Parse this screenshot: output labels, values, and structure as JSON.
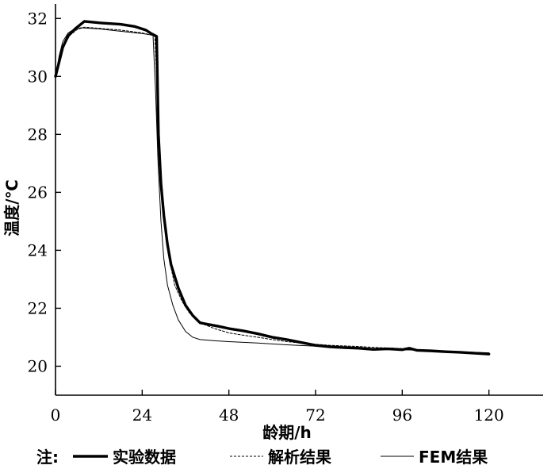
{
  "chart_data": {
    "type": "line",
    "xlabel": "龄期/h",
    "ylabel": "温度/℃",
    "xlim": [
      0,
      135
    ],
    "ylim": [
      19,
      32.5
    ],
    "x_ticks": [
      "0",
      "24",
      "48",
      "72",
      "96",
      "120"
    ],
    "x_tick_values": [
      0,
      24,
      48,
      72,
      96,
      120
    ],
    "y_ticks": [
      "20",
      "22",
      "24",
      "26",
      "28",
      "30",
      "32"
    ],
    "y_tick_values": [
      20,
      22,
      24,
      26,
      28,
      30,
      32
    ],
    "legend_prefix": "注:",
    "legend_position": "bottom",
    "series": [
      {
        "name": "实验数据",
        "style": "thick",
        "color": "#000000",
        "points": [
          [
            0,
            30
          ],
          [
            1,
            30.5
          ],
          [
            2,
            31
          ],
          [
            3.5,
            31.4
          ],
          [
            5.5,
            31.65
          ],
          [
            7,
            31.8
          ],
          [
            8,
            31.9
          ],
          [
            12,
            31.85
          ],
          [
            18,
            31.8
          ],
          [
            22,
            31.72
          ],
          [
            25,
            31.6
          ],
          [
            26.5,
            31.48
          ],
          [
            28,
            31.38
          ],
          [
            28.5,
            28
          ],
          [
            29.2,
            26.3
          ],
          [
            30,
            25.2
          ],
          [
            31,
            24.2
          ],
          [
            32,
            23.5
          ],
          [
            34,
            22.7
          ],
          [
            36,
            22.1
          ],
          [
            38,
            21.75
          ],
          [
            40,
            21.5
          ],
          [
            42,
            21.45
          ],
          [
            45,
            21.38
          ],
          [
            48,
            21.3
          ],
          [
            52,
            21.22
          ],
          [
            56,
            21.12
          ],
          [
            60,
            21.0
          ],
          [
            64,
            20.92
          ],
          [
            68,
            20.82
          ],
          [
            72,
            20.72
          ],
          [
            76,
            20.67
          ],
          [
            80,
            20.64
          ],
          [
            84,
            20.62
          ],
          [
            88,
            20.58
          ],
          [
            92,
            20.6
          ],
          [
            96,
            20.57
          ],
          [
            98,
            20.62
          ],
          [
            100,
            20.55
          ],
          [
            104,
            20.53
          ],
          [
            108,
            20.5
          ],
          [
            112,
            20.48
          ],
          [
            116,
            20.45
          ],
          [
            120,
            20.42
          ]
        ]
      },
      {
        "name": "解析结果",
        "style": "dashed",
        "color": "#000000",
        "points": [
          [
            0,
            30
          ],
          [
            1,
            30.55
          ],
          [
            2,
            31
          ],
          [
            4,
            31.42
          ],
          [
            6,
            31.62
          ],
          [
            8,
            31.7
          ],
          [
            12,
            31.66
          ],
          [
            18,
            31.6
          ],
          [
            24,
            31.5
          ],
          [
            27.5,
            31.4
          ],
          [
            28.5,
            28.5
          ],
          [
            29.5,
            26
          ],
          [
            30.5,
            24.6
          ],
          [
            31.5,
            23.7
          ],
          [
            33,
            22.8
          ],
          [
            35,
            22.25
          ],
          [
            37,
            21.85
          ],
          [
            40,
            21.5
          ],
          [
            44,
            21.3
          ],
          [
            48,
            21.15
          ],
          [
            52,
            21.07
          ],
          [
            56,
            21.0
          ],
          [
            60,
            20.92
          ],
          [
            64,
            20.85
          ],
          [
            68,
            20.8
          ],
          [
            72,
            20.76
          ],
          [
            76,
            20.72
          ],
          [
            80,
            20.7
          ],
          [
            84,
            20.68
          ],
          [
            88,
            20.65
          ],
          [
            92,
            20.63
          ],
          [
            96,
            20.61
          ]
        ]
      },
      {
        "name": "FEM结果",
        "style": "thin",
        "color": "#000000",
        "points": [
          [
            0,
            30
          ],
          [
            1,
            30.7
          ],
          [
            2,
            31.2
          ],
          [
            3.5,
            31.5
          ],
          [
            5,
            31.62
          ],
          [
            7,
            31.68
          ],
          [
            12,
            31.64
          ],
          [
            18,
            31.56
          ],
          [
            24,
            31.48
          ],
          [
            27,
            31.42
          ],
          [
            27.7,
            29.5
          ],
          [
            28.4,
            27
          ],
          [
            29.2,
            25
          ],
          [
            30,
            23.7
          ],
          [
            31,
            22.8
          ],
          [
            32.5,
            22.1
          ],
          [
            34,
            21.6
          ],
          [
            36,
            21.2
          ],
          [
            38,
            21.0
          ],
          [
            40,
            20.92
          ],
          [
            44,
            20.88
          ],
          [
            48,
            20.85
          ],
          [
            56,
            20.8
          ],
          [
            64,
            20.74
          ],
          [
            72,
            20.69
          ],
          [
            80,
            20.64
          ],
          [
            88,
            20.61
          ],
          [
            96,
            20.57
          ],
          [
            104,
            20.54
          ],
          [
            112,
            20.5
          ],
          [
            120,
            20.46
          ]
        ]
      }
    ]
  }
}
